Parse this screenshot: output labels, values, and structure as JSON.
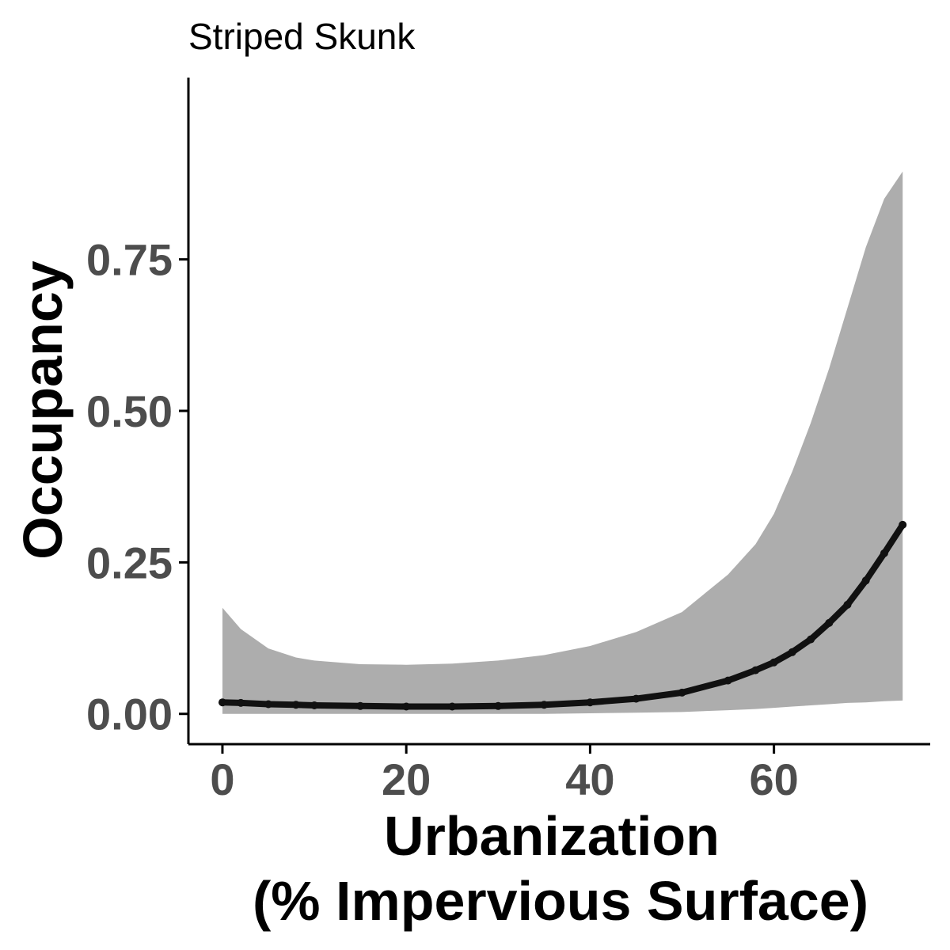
{
  "chart_data": {
    "type": "line",
    "title": "Striped Skunk",
    "xlabel": [
      "Urbanization",
      "(% Impervious Surface)"
    ],
    "ylabel": "Occupancy",
    "xlim": [
      -3.7,
      77
    ],
    "ylim": [
      -0.05,
      1.05
    ],
    "xticks": [
      0,
      20,
      40,
      60
    ],
    "xtick_labels": [
      "0",
      "20",
      "40",
      "60"
    ],
    "yticks": [
      0,
      0.25,
      0.5,
      0.75
    ],
    "ytick_labels": [
      "0.00",
      "0.25",
      "0.50",
      "0.75"
    ],
    "grid": false,
    "legend": "none",
    "colors": {
      "line": "#111111",
      "ribbon": "#adadad",
      "axis": "#000000"
    },
    "series": [
      {
        "x": [
          0,
          2,
          5,
          8,
          10,
          15,
          20,
          25,
          30,
          35,
          40,
          45,
          50,
          55,
          58,
          60,
          62,
          64,
          66,
          68,
          70,
          72,
          74
        ],
        "y": [
          0.019,
          0.018,
          0.016,
          0.015,
          0.014,
          0.013,
          0.012,
          0.012,
          0.013,
          0.015,
          0.019,
          0.025,
          0.035,
          0.055,
          0.072,
          0.085,
          0.102,
          0.123,
          0.15,
          0.18,
          0.22,
          0.265,
          0.312
        ],
        "lower": [
          0.0,
          0.0,
          0.0,
          0.0,
          0.0,
          0.0,
          0.0,
          0.0,
          0.0,
          0.0,
          0.001,
          0.002,
          0.003,
          0.006,
          0.008,
          0.01,
          0.012,
          0.014,
          0.016,
          0.018,
          0.019,
          0.021,
          0.022
        ],
        "upper": [
          0.175,
          0.14,
          0.108,
          0.093,
          0.088,
          0.082,
          0.081,
          0.083,
          0.088,
          0.097,
          0.112,
          0.135,
          0.168,
          0.23,
          0.28,
          0.33,
          0.4,
          0.48,
          0.57,
          0.67,
          0.77,
          0.85,
          0.895
        ]
      }
    ]
  }
}
